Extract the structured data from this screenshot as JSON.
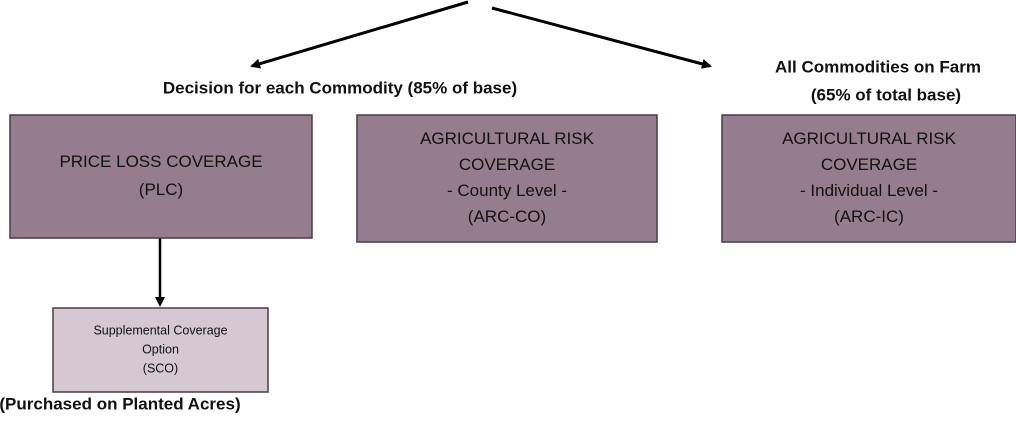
{
  "labels": {
    "decision_each": "Decision for each Commodity (85% of base)",
    "all_commodities": [
      "All Commodities on Farm",
      "(65% of total base)"
    ],
    "purchased": "(Purchased on Planted Acres)"
  },
  "nodes": [
    {
      "lines": [
        "PRICE LOSS COVERAGE",
        "(PLC)"
      ]
    },
    {
      "lines": [
        "AGRICULTURAL RISK",
        "COVERAGE",
        "- County Level -",
        "(ARC-CO)"
      ]
    },
    {
      "lines": [
        "AGRICULTURAL RISK",
        "COVERAGE",
        "- Individual Level -",
        "(ARC-IC)"
      ]
    },
    {
      "lines": [
        "Supplemental Coverage",
        "Option",
        "(SCO)"
      ]
    }
  ]
}
